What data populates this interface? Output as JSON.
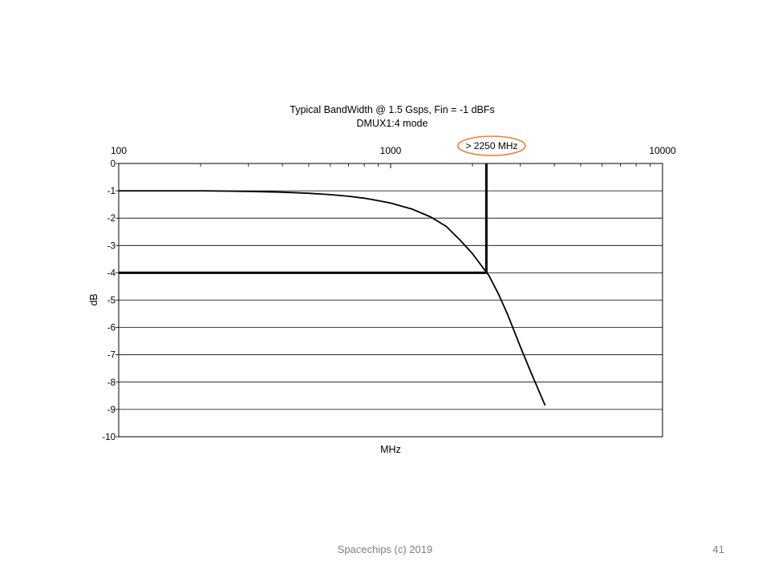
{
  "slide": {
    "footer": "Spacechips (c) 2019",
    "page_number": "41"
  },
  "chart_data": {
    "type": "line",
    "title": "Typical BandWidth @ 1.5 Gsps, Fin = -1 dBFs",
    "subtitle": "DMUX1:4 mode",
    "xlabel": "MHz",
    "ylabel": "dB",
    "x_scale": "log",
    "xlim": [
      100,
      10000
    ],
    "ylim": [
      -10,
      0
    ],
    "x_tick_labels": [
      "100",
      "1000",
      "10000"
    ],
    "y_tick_labels": [
      "0",
      "-1",
      "-2",
      "-3",
      "-4",
      "-5",
      "-6",
      "-7",
      "-8",
      "-9",
      "-10"
    ],
    "x_ticks": [
      100,
      1000,
      10000
    ],
    "y_ticks": [
      0,
      -1,
      -2,
      -3,
      -4,
      -5,
      -6,
      -7,
      -8,
      -9,
      -10
    ],
    "grid": "horizontal",
    "series": [
      {
        "color": "#000000",
        "x": [
          100,
          200,
          300,
          400,
          500,
          600,
          700,
          800,
          900,
          1000,
          1200,
          1400,
          1600,
          1800,
          2000,
          2200,
          2300,
          2500,
          2700,
          3000,
          3300,
          3700
        ],
        "y": [
          -1.0,
          -1.0,
          -1.02,
          -1.05,
          -1.09,
          -1.14,
          -1.2,
          -1.27,
          -1.36,
          -1.45,
          -1.67,
          -1.95,
          -2.3,
          -2.8,
          -3.3,
          -3.85,
          -4.1,
          -4.8,
          -5.55,
          -6.7,
          -7.7,
          -8.85
        ]
      }
    ],
    "markers": [
      {
        "type": "hline",
        "y": -4,
        "x_range": [
          100,
          2250
        ]
      },
      {
        "type": "vline",
        "x": 2250,
        "y_range": [
          -4,
          0
        ]
      }
    ],
    "annotation": {
      "text": "> 2250 MHz",
      "outline_color": "#ed7d31"
    }
  }
}
